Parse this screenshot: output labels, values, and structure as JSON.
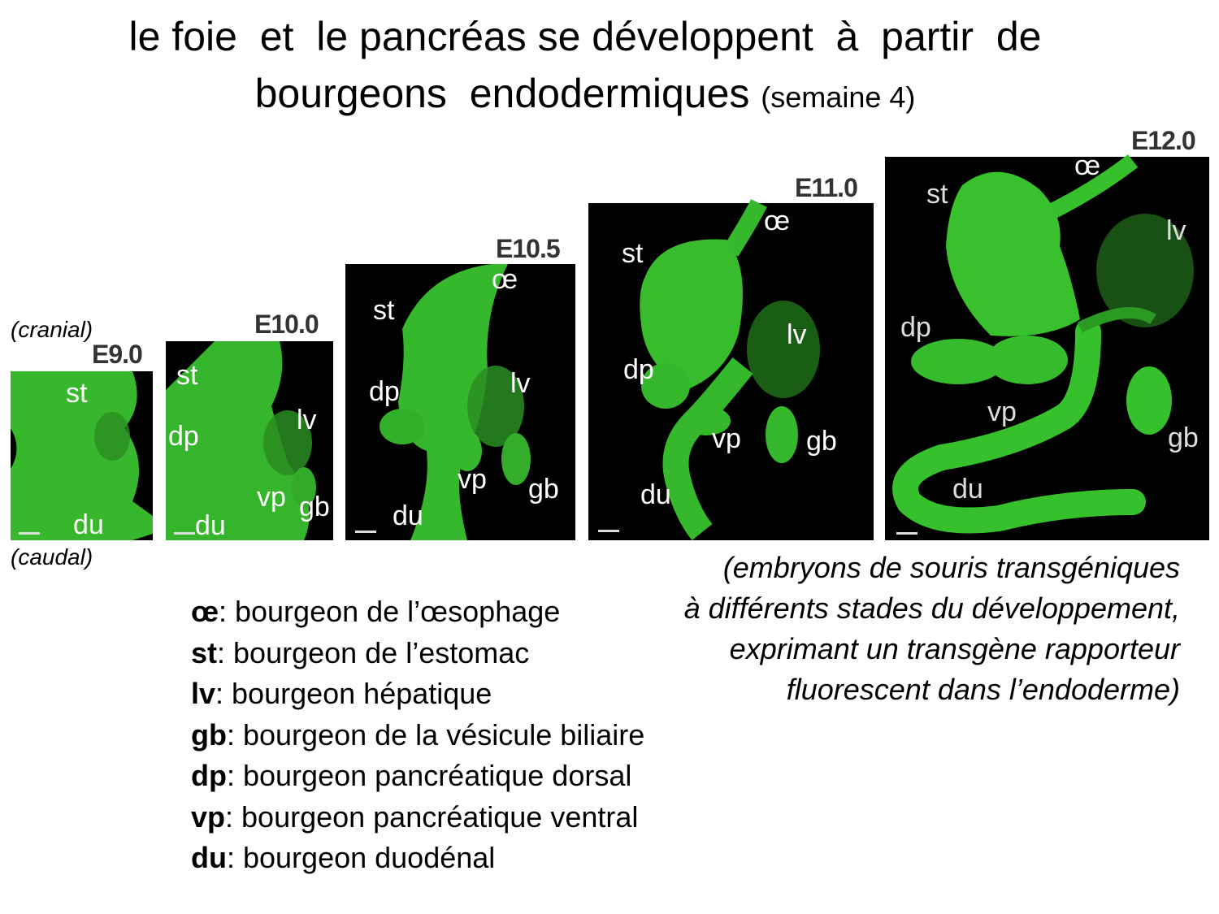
{
  "title": {
    "line1": "le foie  et  le pancréas se développent  à  partir  de",
    "line2_main": "bourgeons  endodermiques",
    "line2_small": "(semaine 4)"
  },
  "orientation": {
    "top": "(cranial)",
    "bottom": "(caudal)"
  },
  "panels": [
    {
      "stage": "E9.0",
      "labels": {
        "st": "st",
        "du": "du"
      }
    },
    {
      "stage": "E10.0",
      "labels": {
        "st": "st",
        "dp": "dp",
        "lv": "lv",
        "vp": "vp",
        "gb": "gb",
        "du": "du"
      }
    },
    {
      "stage": "E10.5",
      "labels": {
        "oe": "œ",
        "st": "st",
        "dp": "dp",
        "lv": "lv",
        "vp": "vp",
        "gb": "gb",
        "du": "du"
      }
    },
    {
      "stage": "E11.0",
      "labels": {
        "oe": "œ",
        "st": "st",
        "lv": "lv",
        "dp": "dp",
        "vp": "vp",
        "gb": "gb",
        "du": "du"
      }
    },
    {
      "stage": "E12.0",
      "labels": {
        "oe": "œ",
        "st": "st",
        "lv": "lv",
        "dp": "dp",
        "vp": "vp",
        "gb": "gb",
        "du": "du"
      }
    }
  ],
  "legend": [
    {
      "abbr": "œ",
      "text": ": bourgeon de l’œsophage"
    },
    {
      "abbr": "st",
      "text": ": bourgeon de l’estomac"
    },
    {
      "abbr": "lv",
      "text": ": bourgeon hépatique"
    },
    {
      "abbr": "gb",
      "text": ": bourgeon de la vésicule biliaire"
    },
    {
      "abbr": "dp",
      "text": ": bourgeon pancréatique dorsal"
    },
    {
      "abbr": "vp",
      "text": ": bourgeon pancréatique ventral"
    },
    {
      "abbr": "du",
      "text": ": bourgeon duodénal"
    }
  ],
  "caption": [
    "(embryons de souris transgéniques",
    "à différents stades du développement,",
    "exprimant un transgène rapporteur",
    "fluorescent dans l’endoderme)"
  ],
  "colors": {
    "fluorescence": "#33c62a",
    "background": "#000000"
  }
}
